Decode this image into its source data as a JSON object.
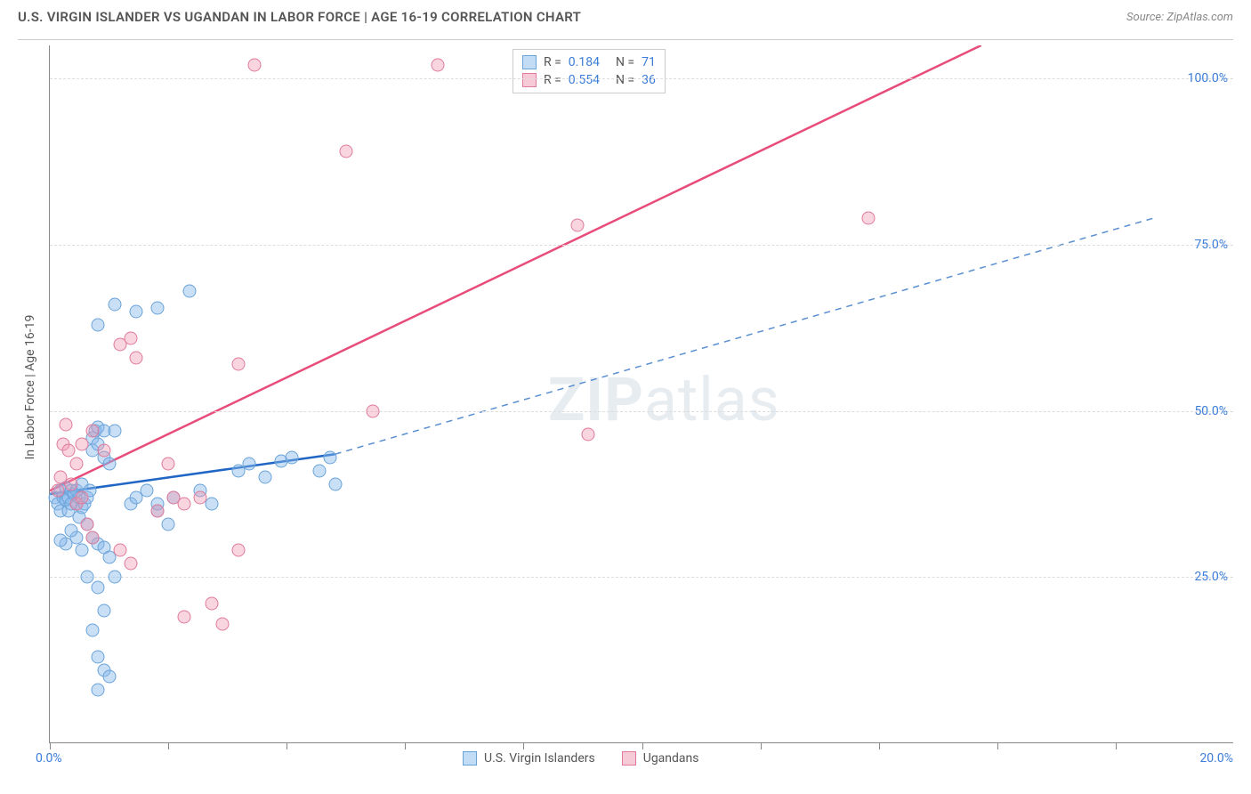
{
  "header": {
    "title": "U.S. VIRGIN ISLANDER VS UGANDAN IN LABOR FORCE | AGE 16-19 CORRELATION CHART",
    "source": "Source: ZipAtlas.com"
  },
  "chart": {
    "type": "scatter",
    "yaxis_label": "In Labor Force | Age 16-19",
    "xlim": [
      0,
      22
    ],
    "ylim": [
      0,
      105
    ],
    "ytick_labels": [
      "25.0%",
      "50.0%",
      "75.0%",
      "100.0%"
    ],
    "ytick_vals": [
      25,
      50,
      75,
      100
    ],
    "xtick_vals": [
      0,
      2.2,
      4.4,
      6.6,
      8.8,
      11,
      13.2,
      15.4,
      17.6,
      19.8
    ],
    "xtick_label_left": "0.0%",
    "xtick_label_right": "20.0%",
    "background_color": "#ffffff",
    "grid_color": "#dddddd",
    "watermark": "ZIPatlas",
    "series": [
      {
        "name": "U.S. Virgin Islanders",
        "color_fill": "rgba(135,185,235,0.45)",
        "color_stroke": "#6aa3d8",
        "line_color": "#2066c4",
        "line_dash_color": "#5a8fd0",
        "R": "0.184",
        "N": "71",
        "trend": {
          "x1": 0,
          "y1": 37.5,
          "x2": 5.3,
          "y2": 43.5,
          "x2_dash": 20.5,
          "y2_dash": 79
        },
        "points": [
          [
            0.1,
            37
          ],
          [
            0.15,
            36
          ],
          [
            0.2,
            38
          ],
          [
            0.2,
            35
          ],
          [
            0.25,
            37
          ],
          [
            0.3,
            36.5
          ],
          [
            0.3,
            38.5
          ],
          [
            0.35,
            37
          ],
          [
            0.35,
            35
          ],
          [
            0.4,
            38
          ],
          [
            0.4,
            36
          ],
          [
            0.45,
            37.5
          ],
          [
            0.5,
            36
          ],
          [
            0.5,
            38
          ],
          [
            0.55,
            37
          ],
          [
            0.55,
            34
          ],
          [
            0.6,
            35.5
          ],
          [
            0.6,
            39
          ],
          [
            0.65,
            36
          ],
          [
            0.7,
            37
          ],
          [
            0.7,
            33
          ],
          [
            0.75,
            38
          ],
          [
            0.8,
            44
          ],
          [
            0.8,
            46
          ],
          [
            0.85,
            47
          ],
          [
            0.9,
            47.5
          ],
          [
            0.9,
            45
          ],
          [
            1.0,
            47
          ],
          [
            1.0,
            43
          ],
          [
            1.1,
            42
          ],
          [
            0.3,
            30
          ],
          [
            0.2,
            30.5
          ],
          [
            0.5,
            31
          ],
          [
            0.6,
            29
          ],
          [
            0.4,
            32
          ],
          [
            0.8,
            31
          ],
          [
            0.9,
            30
          ],
          [
            1.0,
            29.5
          ],
          [
            1.1,
            28
          ],
          [
            0.7,
            25
          ],
          [
            0.9,
            23.5
          ],
          [
            1.2,
            25
          ],
          [
            1.0,
            20
          ],
          [
            0.8,
            17
          ],
          [
            0.9,
            13
          ],
          [
            1.0,
            11
          ],
          [
            1.1,
            10
          ],
          [
            0.9,
            8
          ],
          [
            0.9,
            63
          ],
          [
            1.2,
            66
          ],
          [
            1.6,
            65
          ],
          [
            2.0,
            65.5
          ],
          [
            1.2,
            47
          ],
          [
            1.5,
            36
          ],
          [
            1.6,
            37
          ],
          [
            1.8,
            38
          ],
          [
            2.0,
            35
          ],
          [
            2.2,
            33
          ],
          [
            2.0,
            36
          ],
          [
            2.3,
            37
          ],
          [
            2.8,
            38
          ],
          [
            2.6,
            68
          ],
          [
            3.0,
            36
          ],
          [
            3.5,
            41
          ],
          [
            3.7,
            42
          ],
          [
            4.0,
            40
          ],
          [
            4.3,
            42.5
          ],
          [
            4.5,
            43
          ],
          [
            5.0,
            41
          ],
          [
            5.3,
            39
          ],
          [
            5.2,
            43
          ]
        ]
      },
      {
        "name": "Ugandans",
        "color_fill": "rgba(240,150,175,0.4)",
        "color_stroke": "#e07a9a",
        "line_color": "#e84c7a",
        "R": "0.554",
        "N": "36",
        "trend": {
          "x1": 0,
          "y1": 38,
          "x2": 17.3,
          "y2": 105
        },
        "points": [
          [
            0.15,
            38
          ],
          [
            0.2,
            40
          ],
          [
            0.25,
            45
          ],
          [
            0.3,
            48
          ],
          [
            0.35,
            44
          ],
          [
            0.4,
            39
          ],
          [
            0.5,
            36
          ],
          [
            0.6,
            37
          ],
          [
            0.7,
            33
          ],
          [
            0.8,
            31
          ],
          [
            0.5,
            42
          ],
          [
            0.6,
            45
          ],
          [
            0.8,
            47
          ],
          [
            1.0,
            44
          ],
          [
            1.3,
            60
          ],
          [
            1.5,
            61
          ],
          [
            1.6,
            58
          ],
          [
            1.3,
            29
          ],
          [
            1.5,
            27
          ],
          [
            2.0,
            35
          ],
          [
            2.2,
            42
          ],
          [
            2.3,
            37
          ],
          [
            2.5,
            36
          ],
          [
            2.8,
            37
          ],
          [
            3.0,
            21
          ],
          [
            2.5,
            19
          ],
          [
            3.2,
            18
          ],
          [
            3.5,
            29
          ],
          [
            3.5,
            57
          ],
          [
            3.8,
            102
          ],
          [
            5.5,
            89
          ],
          [
            6.0,
            50
          ],
          [
            7.2,
            102
          ],
          [
            9.8,
            78
          ],
          [
            10.0,
            46.5
          ],
          [
            15.2,
            79
          ]
        ]
      }
    ]
  },
  "legend_bottom": {
    "item1": "U.S. Virgin Islanders",
    "item2": "Ugandans"
  }
}
